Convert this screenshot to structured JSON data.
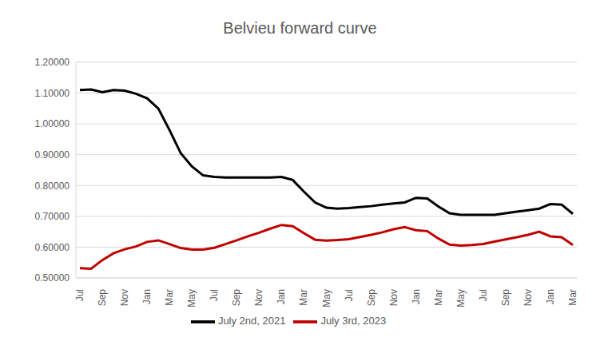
{
  "chart_data": {
    "type": "line",
    "title": "Belvieu forward curve",
    "categories": [
      "Jul",
      null,
      "Sep",
      null,
      "Nov",
      null,
      "Jan",
      null,
      "Mar",
      null,
      "May",
      null,
      "Jul",
      null,
      "Sep",
      null,
      "Nov",
      null,
      "Jan",
      null,
      "Mar",
      null,
      "May",
      null,
      "Jul",
      null,
      "Sep",
      null,
      "Nov",
      null,
      "Jan",
      null,
      "Mar",
      null,
      "May",
      null,
      "Jul",
      null,
      "Sep",
      null,
      "Nov",
      null,
      "Jan",
      null,
      "Mar"
    ],
    "series": [
      {
        "name": "July 3rd, 2023",
        "color": "#c00000",
        "values": [
          0.532,
          0.53,
          0.558,
          0.58,
          0.593,
          0.602,
          0.617,
          0.622,
          0.61,
          0.597,
          0.592,
          0.592,
          0.598,
          0.61,
          0.622,
          0.635,
          0.647,
          0.66,
          0.672,
          0.668,
          0.645,
          0.624,
          0.621,
          0.623,
          0.626,
          0.633,
          0.64,
          0.648,
          0.658,
          0.665,
          0.655,
          0.652,
          0.628,
          0.608,
          0.605,
          0.607,
          0.61,
          0.618,
          0.625,
          0.632,
          0.64,
          0.65,
          0.635,
          0.632,
          0.607
        ]
      },
      {
        "name": "July 2nd, 2021",
        "color": "#000000",
        "values": [
          1.11,
          1.112,
          1.103,
          1.11,
          1.108,
          1.098,
          1.083,
          1.05,
          0.98,
          0.905,
          0.862,
          0.833,
          0.828,
          0.826,
          0.826,
          0.826,
          0.826,
          0.826,
          0.828,
          0.818,
          0.78,
          0.745,
          0.728,
          0.725,
          0.727,
          0.73,
          0.733,
          0.738,
          0.742,
          0.745,
          0.76,
          0.758,
          0.732,
          0.71,
          0.705,
          0.705,
          0.705,
          0.705,
          0.71,
          0.715,
          0.72,
          0.725,
          0.74,
          0.738,
          0.708
        ]
      }
    ],
    "ylim": [
      0.5,
      1.2
    ],
    "yticks": [
      {
        "value": 0.5,
        "label": "0.50000"
      },
      {
        "value": 0.6,
        "label": "0.60000"
      },
      {
        "value": 0.7,
        "label": "0.70000"
      },
      {
        "value": 0.8,
        "label": "0.80000"
      },
      {
        "value": 0.9,
        "label": "0.90000"
      },
      {
        "value": 1.0,
        "label": "1.00000"
      },
      {
        "value": 1.1,
        "label": "1.10000"
      },
      {
        "value": 1.2,
        "label": "1.20000"
      }
    ],
    "grid": true,
    "legend": "bottom"
  }
}
